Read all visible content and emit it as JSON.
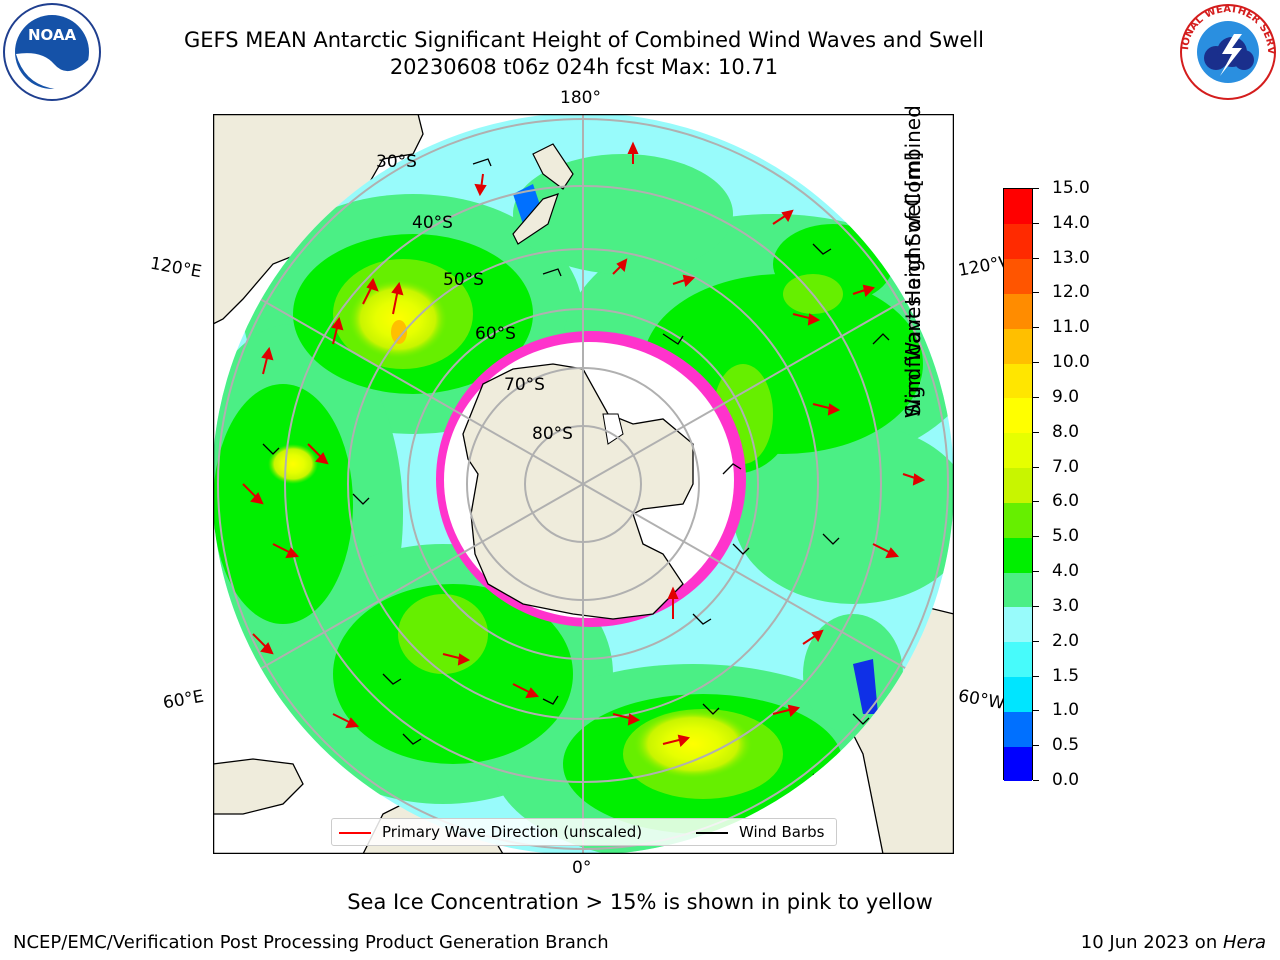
{
  "title_line1": "GEFS MEAN Antarctic Significant Height of Combined Wind Waves and Swell",
  "title_line2": "20230608 t06z 024h fcst   Max: 10.71",
  "logos": {
    "left": "NOAA",
    "right": "NATIONAL WEATHER SERVICE"
  },
  "map": {
    "projection": "south polar stereographic",
    "longitude_labels": {
      "top": "180°",
      "upper_left": "120°E",
      "upper_right": "120°W",
      "lower_left": "60°E",
      "lower_right": "60°W",
      "bottom": "0°"
    },
    "latitude_labels": [
      "30°S",
      "40°S",
      "50°S",
      "60°S",
      "70°S",
      "80°S"
    ],
    "colors": {
      "land": "#efecdc",
      "ocean_low": "#98fbfb",
      "sea_ice": "#ff33cc",
      "grid": "#b0b0b0"
    }
  },
  "legend": {
    "items": [
      {
        "label": "Primary Wave Direction (unscaled)",
        "color": "#ff0000"
      },
      {
        "label": "Wind Barbs",
        "color": "#000000"
      }
    ]
  },
  "colorbar": {
    "title_line1": "Significant Height of Combined",
    "title_line2": "Wind Waves and Swell [m]",
    "ticks": [
      "0.0",
      "0.5",
      "1.0",
      "1.5",
      "2.0",
      "3.0",
      "4.0",
      "5.0",
      "6.0",
      "7.0",
      "8.0",
      "9.0",
      "10.0",
      "11.0",
      "12.0",
      "13.0",
      "14.0",
      "15.0"
    ],
    "colors": [
      "#0000ff",
      "#0070ff",
      "#00e5ff",
      "#47fbfb",
      "#98fbfb",
      "#4bef85",
      "#00ef00",
      "#66ef00",
      "#c8f500",
      "#e6ff00",
      "#ffff00",
      "#ffe600",
      "#ffbf00",
      "#ff8c00",
      "#ff5500",
      "#ff2a00",
      "#ff0000"
    ]
  },
  "note": "Sea Ice Concentration > 15% is shown in pink to yellow",
  "footer_left": "NCEP/EMC/Verification Post Processing Product Generation Branch",
  "footer_right_date": "10 Jun 2023 on ",
  "footer_right_machine": "Hera"
}
